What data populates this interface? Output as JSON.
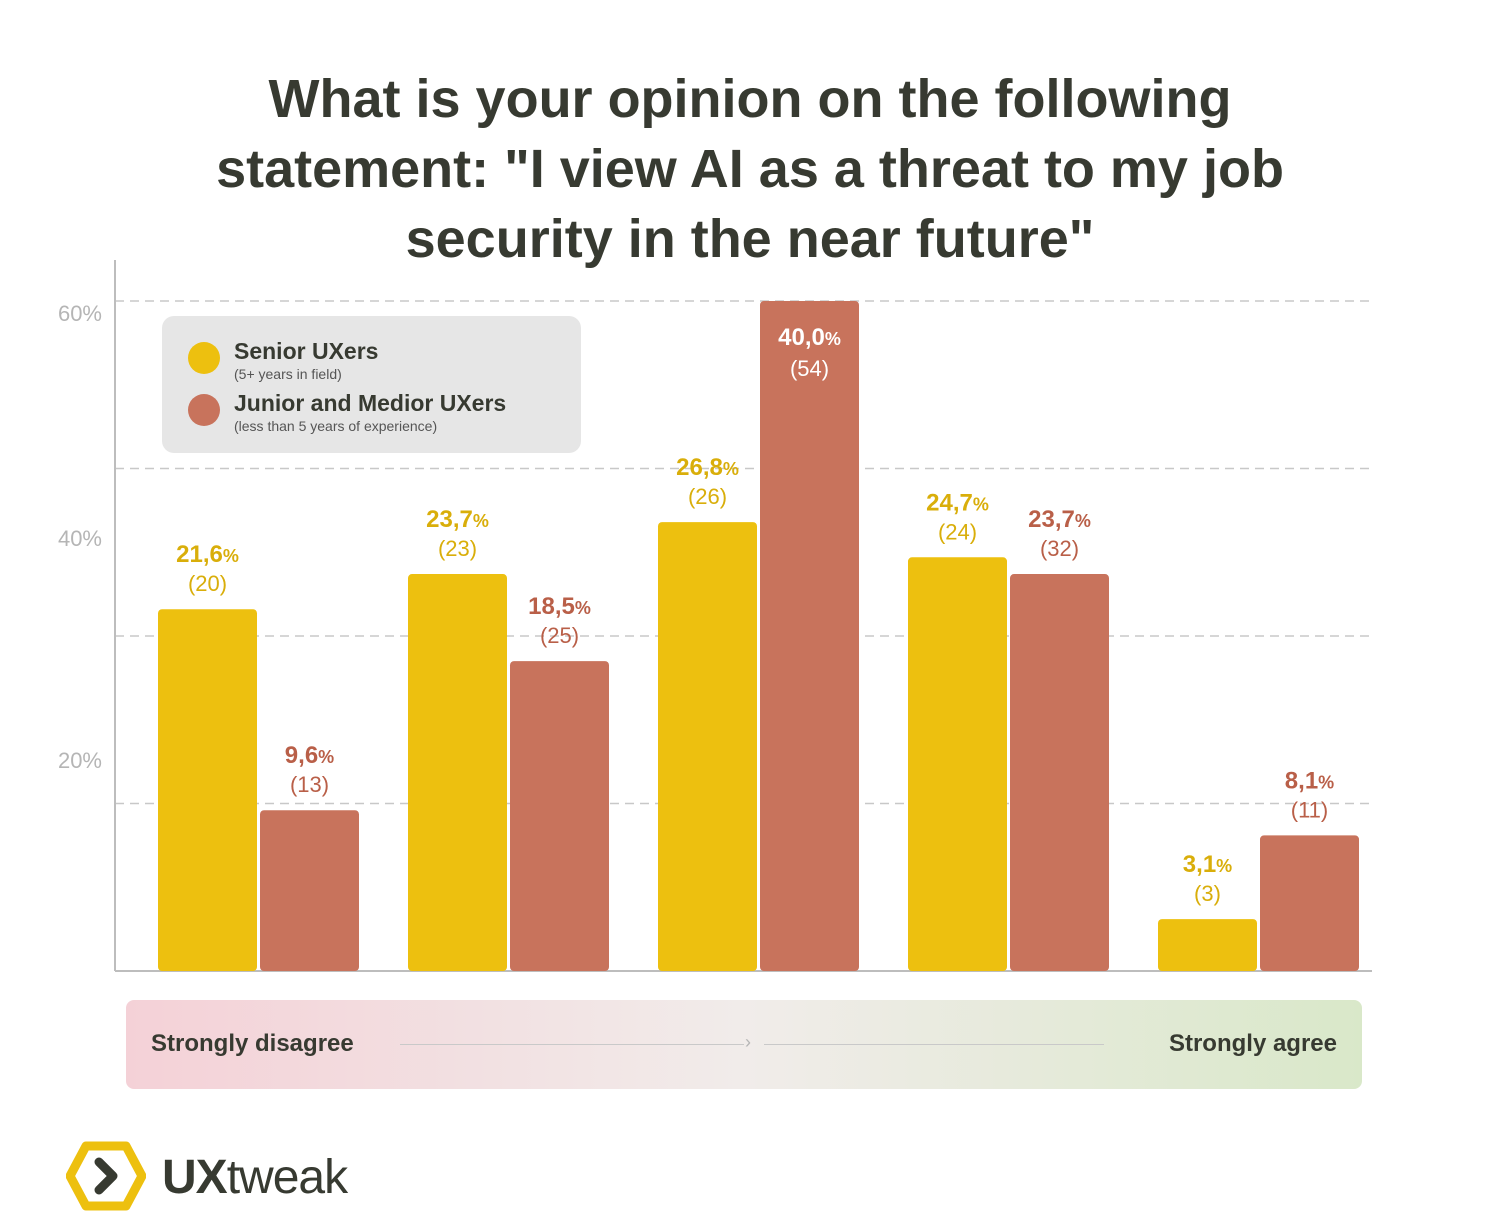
{
  "title_lines": [
    "What is your opinion on the following",
    "statement: \"I view AI as a threat to my job",
    "security in the near future\""
  ],
  "colors": {
    "senior": "#edc00f",
    "junior": "#c8735c",
    "senior_text": "#d9ae0a",
    "junior_text": "#b95f48"
  },
  "legend": {
    "senior": {
      "label": "Senior UXers",
      "sub": "(5+ years in field)"
    },
    "junior": {
      "label": "Junior and Medior UXers",
      "sub": "(less than 5 years of experience)"
    }
  },
  "scale": {
    "left": "Strongly disagree",
    "right": "Strongly agree"
  },
  "brand": {
    "bold": "UX",
    "light": "tweak"
  },
  "chart_data": {
    "type": "bar",
    "title": "What is your opinion on the following statement: \"I view AI as a threat to my job security in the near future\"",
    "yticks": [
      "60%",
      "40%",
      "20%"
    ],
    "grid": true,
    "legend_position": "top-left",
    "groups": [
      {
        "senior": {
          "pct": 21.6,
          "label": "21,6",
          "count": "(20)"
        },
        "junior": {
          "pct": 9.6,
          "label": "9,6",
          "count": "(13)"
        }
      },
      {
        "senior": {
          "pct": 23.7,
          "label": "23,7",
          "count": "(23)"
        },
        "junior": {
          "pct": 18.5,
          "label": "18,5",
          "count": "(25)"
        }
      },
      {
        "senior": {
          "pct": 26.8,
          "label": "26,8",
          "count": "(26)"
        },
        "junior": {
          "pct": 40.0,
          "label": "40,0",
          "count": "(54)"
        }
      },
      {
        "senior": {
          "pct": 24.7,
          "label": "24,7",
          "count": "(24)"
        },
        "junior": {
          "pct": 23.7,
          "label": "23,7",
          "count": "(32)"
        }
      },
      {
        "senior": {
          "pct": 3.1,
          "label": "3,1",
          "count": "(3)"
        },
        "junior": {
          "pct": 8.1,
          "label": "8,1",
          "count": "(11)"
        }
      }
    ]
  }
}
